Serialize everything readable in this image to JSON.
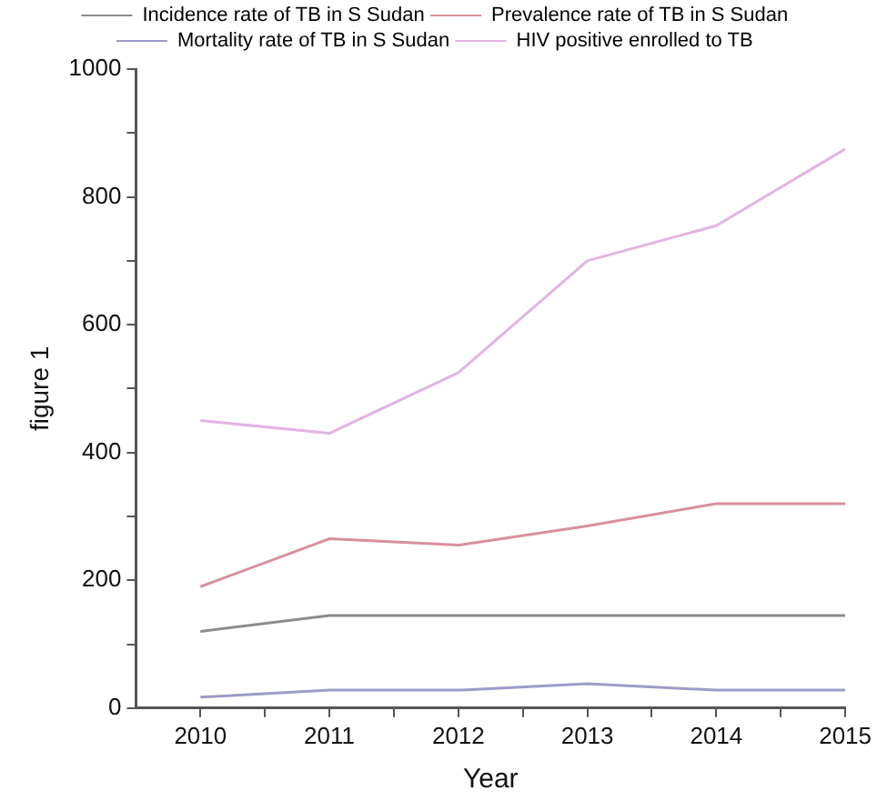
{
  "chart_data": {
    "type": "line",
    "xlabel": "Year",
    "ylabel": "figure 1",
    "x": [
      2010,
      2011,
      2012,
      2013,
      2014,
      2015
    ],
    "xlim": [
      2009.5,
      2015
    ],
    "xticks": [
      2010,
      {
        "value": 2010.5,
        "label": null
      },
      2011,
      {
        "value": 2011.5,
        "label": null
      },
      2012,
      {
        "value": 2012.5,
        "label": null
      },
      2013,
      {
        "value": 2013.5,
        "label": null
      },
      2014,
      {
        "value": 2014.5,
        "label": null
      },
      2015
    ],
    "ylim": [
      0,
      1000
    ],
    "yticks": [
      0,
      {
        "value": 100,
        "label": null
      },
      200,
      {
        "value": 300,
        "label": null
      },
      400,
      {
        "value": 500,
        "label": null
      },
      600,
      {
        "value": 700,
        "label": null
      },
      800,
      {
        "value": 900,
        "label": null
      },
      1000
    ],
    "grid": false,
    "legend": "top",
    "marker": "none",
    "line_style": "solid",
    "series": [
      {
        "name": "Incidence rate of TB in S Sudan",
        "color": "#8c8c8c",
        "values": [
          120,
          145,
          145,
          145,
          145,
          145
        ]
      },
      {
        "name": "Prevalence rate of TB in S Sudan",
        "color": "#d8909c",
        "values": [
          190,
          265,
          255,
          285,
          320,
          320
        ]
      },
      {
        "name": "Mortality rate of TB in S Sudan",
        "color": "#9c9cc8",
        "values": [
          17,
          28,
          28,
          38,
          28,
          28
        ]
      },
      {
        "name": "HIV positive enrolled to TB",
        "color": "#e2b4e2",
        "values": [
          450,
          430,
          525,
          700,
          755,
          875
        ]
      }
    ]
  }
}
